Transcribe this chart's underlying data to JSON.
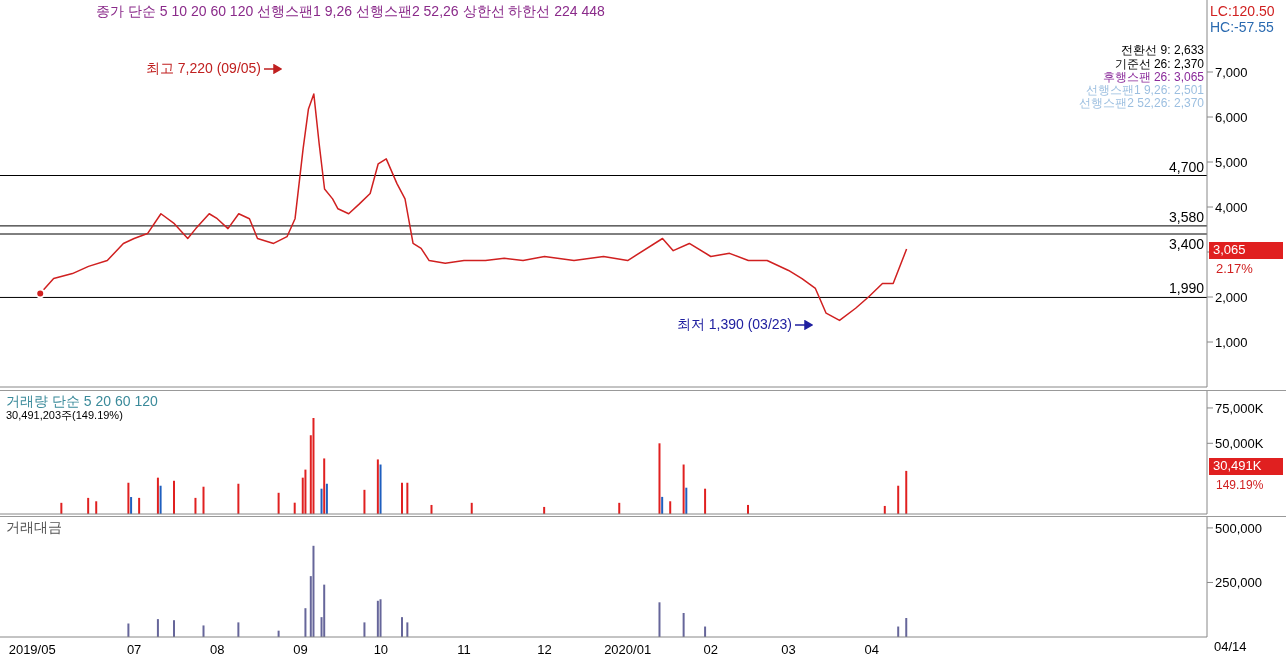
{
  "chart_data": [
    {
      "type": "line",
      "color": "#d02020",
      "xlim": [
        "2019-05-12",
        "2020-08-04"
      ],
      "ylim": [
        0,
        8600
      ],
      "yticks": [
        {
          "value": 1000,
          "label": "1,000"
        },
        {
          "value": 2000,
          "label": "2,000"
        },
        {
          "value": 3000,
          "label": null
        },
        {
          "value": 4000,
          "label": "4,000"
        },
        {
          "value": 5000,
          "label": "5,000"
        },
        {
          "value": 6000,
          "label": "6,000"
        },
        {
          "value": 7000,
          "label": "7,000"
        }
      ],
      "tick_labels": "y",
      "grid": false,
      "legend": false,
      "marker": "none",
      "x": [
        "2019-05-27",
        "2019-06-01",
        "2019-06-08",
        "2019-06-14",
        "2019-06-21",
        "2019-06-27",
        "2019-07-01",
        "2019-07-06",
        "2019-07-11",
        "2019-07-16",
        "2019-07-21",
        "2019-07-24",
        "2019-07-29",
        "2019-08-01",
        "2019-08-05",
        "2019-08-09",
        "2019-08-13",
        "2019-08-16",
        "2019-08-22",
        "2019-08-27",
        "2019-08-30",
        "2019-09-02",
        "2019-09-04",
        "2019-09-06",
        "2019-09-08",
        "2019-09-10",
        "2019-09-13",
        "2019-09-15",
        "2019-09-19",
        "2019-09-23",
        "2019-09-27",
        "2019-09-30",
        "2019-10-03",
        "2019-10-07",
        "2019-10-10",
        "2019-10-13",
        "2019-10-16",
        "2019-10-19",
        "2019-10-25",
        "2019-11-01",
        "2019-11-09",
        "2019-11-16",
        "2019-11-23",
        "2019-12-01",
        "2019-12-12",
        "2019-12-23",
        "2020-01-01",
        "2020-01-14",
        "2020-01-18",
        "2020-01-24",
        "2020-02-01",
        "2020-02-08",
        "2020-02-15",
        "2020-02-22",
        "2020-03-01",
        "2020-03-06",
        "2020-03-11",
        "2020-03-15",
        "2020-03-20",
        "2020-03-26",
        "2020-03-31",
        "2020-04-05",
        "2020-04-09",
        "2020-04-14"
      ],
      "values": [
        2080,
        2410,
        2520,
        2680,
        2810,
        3190,
        3300,
        3410,
        3850,
        3630,
        3300,
        3520,
        3850,
        3740,
        3520,
        3850,
        3740,
        3300,
        3190,
        3340,
        3740,
        5290,
        6180,
        6510,
        5400,
        4400,
        4180,
        3960,
        3850,
        4070,
        4300,
        4960,
        5070,
        4520,
        4180,
        3190,
        3080,
        2810,
        2750,
        2810,
        2810,
        2860,
        2810,
        2900,
        2810,
        2900,
        2810,
        3300,
        3030,
        3190,
        2900,
        2970,
        2810,
        2810,
        2590,
        2410,
        2190,
        1640,
        1480,
        1750,
        2010,
        2300,
        2300,
        3065
      ],
      "ref_lines": [
        {
          "axis": "y",
          "value": 4700,
          "label": "4,700",
          "color": "#000000"
        },
        {
          "axis": "y",
          "value": 3580,
          "label": "3,580",
          "color": "#000000"
        },
        {
          "axis": "y",
          "value": 3400,
          "label": "3,400",
          "color": "#000000"
        },
        {
          "axis": "y",
          "value": 1990,
          "label": "1,990",
          "color": "#000000"
        }
      ],
      "annotations": [
        "종가 단순 5 10 20 60 120 선행스팬1 9,26 선행스팬2 52,26 상한선 하한선 224 448",
        "전환선 9: 2,633",
        "기준선 26: 2,370",
        "후행스팬 26: 3,065",
        "선행스팬1 9,26: 2,501",
        "선행스팬2 52,26: 2,370",
        "LC:120.50",
        "HC:-57.55",
        "2.17%",
        "최고 7,220 (09/05)",
        "최저 1,390 (03/23)",
        "3,065"
      ]
    },
    {
      "type": "bar",
      "xlim": [
        "2019-05-12",
        "2020-08-04"
      ],
      "ylim": [
        0,
        87000
      ],
      "yticks": [
        {
          "value": 50000,
          "label": "50,000K"
        },
        {
          "value": 75000,
          "label": "75,000K"
        }
      ],
      "tick_labels": "y",
      "grid": false,
      "legend": false,
      "x": [
        "2019-06-04",
        "2019-06-14",
        "2019-06-17",
        "2019-06-29",
        "2019-06-30",
        "2019-07-03",
        "2019-07-10",
        "2019-07-11",
        "2019-07-16",
        "2019-07-24",
        "2019-07-27",
        "2019-08-09",
        "2019-08-24",
        "2019-08-30",
        "2019-09-02",
        "2019-09-03",
        "2019-09-05",
        "2019-09-06",
        "2019-09-09",
        "2019-09-10",
        "2019-09-11",
        "2019-09-25",
        "2019-09-30",
        "2019-10-01",
        "2019-10-09",
        "2019-10-11",
        "2019-10-20",
        "2019-11-04",
        "2019-12-01",
        "2019-12-29",
        "2020-01-13",
        "2020-01-14",
        "2020-01-17",
        "2020-01-22",
        "2020-01-23",
        "2020-01-30",
        "2020-02-15",
        "2020-04-06",
        "2020-04-11",
        "2020-04-14"
      ],
      "values": [
        7900,
        11400,
        9000,
        22100,
        12000,
        11400,
        25700,
        20000,
        23500,
        11400,
        19300,
        21400,
        15000,
        8000,
        25700,
        31400,
        55700,
        67900,
        17900,
        39300,
        21400,
        17100,
        38600,
        35000,
        22100,
        22100,
        6400,
        7900,
        5000,
        7900,
        50000,
        12100,
        9000,
        35000,
        18600,
        17900,
        6400,
        5700,
        20000,
        30491
      ],
      "colors": [
        "#e02020",
        "#e02020",
        "#e02020",
        "#e02020",
        "#1f5fbf",
        "#e02020",
        "#e02020",
        "#1f5fbf",
        "#e02020",
        "#e02020",
        "#e02020",
        "#e02020",
        "#e02020",
        "#e02020",
        "#e02020",
        "#e02020",
        "#e02020",
        "#e02020",
        "#1f5fbf",
        "#e02020",
        "#1f5fbf",
        "#e02020",
        "#e02020",
        "#1f5fbf",
        "#e02020",
        "#e02020",
        "#e02020",
        "#e02020",
        "#e02020",
        "#e02020",
        "#e02020",
        "#1f5fbf",
        "#e02020",
        "#e02020",
        "#1f5fbf",
        "#e02020",
        "#e02020",
        "#e02020",
        "#e02020",
        "#e02020"
      ],
      "annotations": [
        "거래량 단순 5 20 60 120",
        "30,491,203주(149.19%)",
        "149.19%",
        "30,491K"
      ]
    },
    {
      "type": "bar",
      "color": "#66669a",
      "xlim": [
        "2019-05-12",
        "2020-08-04"
      ],
      "ylim": [
        0,
        550000
      ],
      "yticks": [
        {
          "value": 250000,
          "label": "250,000"
        },
        {
          "value": 500000,
          "label": "500,000"
        }
      ],
      "grid": false,
      "legend": false,
      "xticks": [
        {
          "value": "2019-05-24",
          "label": "2019/05"
        },
        {
          "value": "2019-07-01",
          "label": "07"
        },
        {
          "value": "2019-08-01",
          "label": "08"
        },
        {
          "value": "2019-09-01",
          "label": "09"
        },
        {
          "value": "2019-10-01",
          "label": "10"
        },
        {
          "value": "2019-11-01",
          "label": "11"
        },
        {
          "value": "2019-12-01",
          "label": "12"
        },
        {
          "value": "2020-01-01",
          "label": "2020/01"
        },
        {
          "value": "2020-02-01",
          "label": "02"
        },
        {
          "value": "2020-03-01",
          "label": "03"
        },
        {
          "value": "2020-04-01",
          "label": "04"
        }
      ],
      "x": [
        "2019-06-29",
        "2019-07-10",
        "2019-07-16",
        "2019-07-27",
        "2019-08-09",
        "2019-08-24",
        "2019-09-03",
        "2019-09-05",
        "2019-09-06",
        "2019-09-09",
        "2019-09-10",
        "2019-09-25",
        "2019-09-30",
        "2019-10-01",
        "2019-10-09",
        "2019-10-11",
        "2020-01-13",
        "2020-01-22",
        "2020-01-30",
        "2020-04-11",
        "2020-04-14"
      ],
      "values": [
        62000,
        82000,
        77000,
        53000,
        67000,
        29000,
        132000,
        279000,
        418000,
        91000,
        240000,
        67000,
        166000,
        173000,
        91000,
        67000,
        159000,
        110000,
        48000,
        48000,
        87000
      ],
      "annotations": [
        "거래대금",
        "04/14"
      ]
    }
  ]
}
